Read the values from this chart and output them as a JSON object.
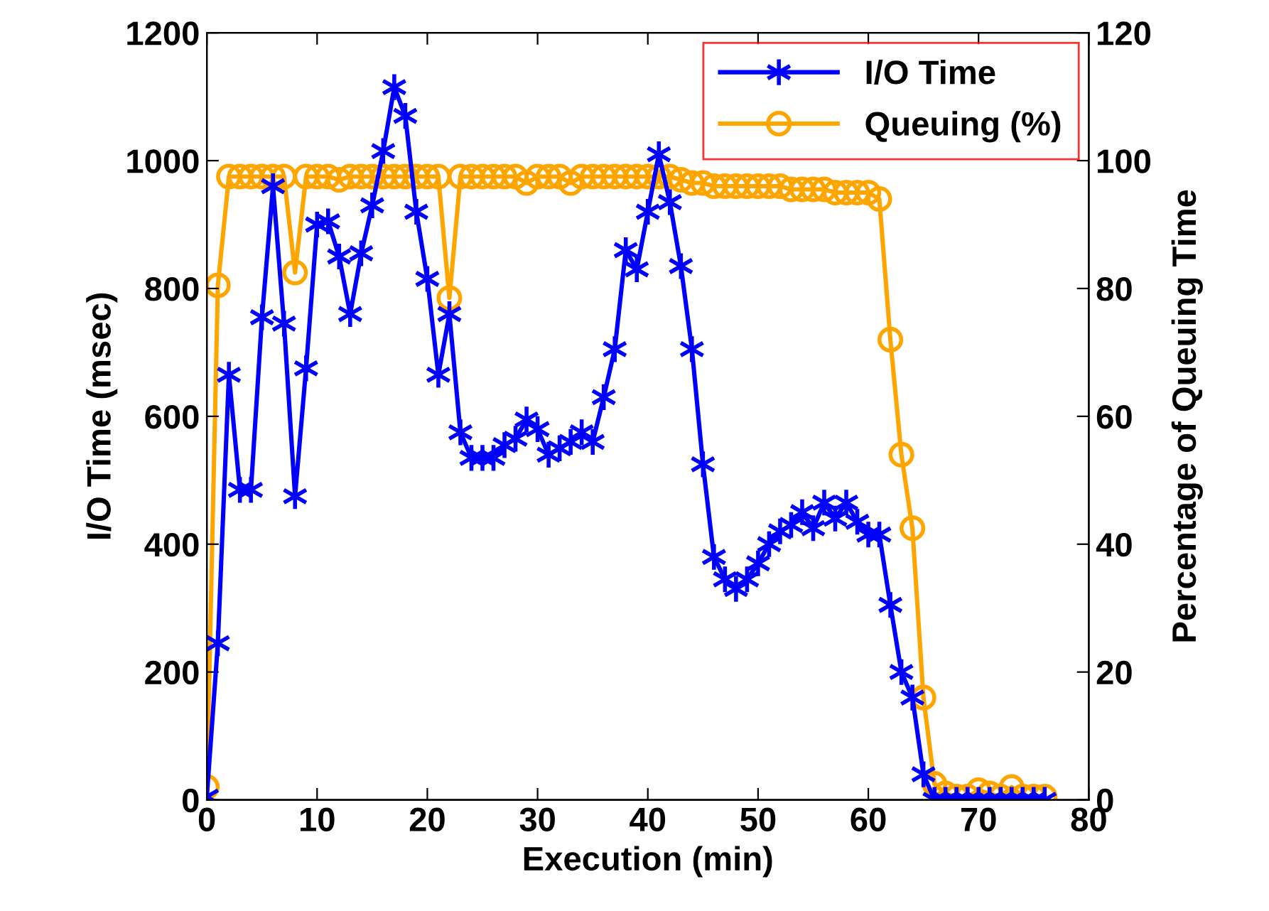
{
  "chart_data": {
    "type": "line",
    "xlabel": "Execution (min)",
    "ylabel": "I/O Time (msec)",
    "y2label": "Percentage of Queuing Time",
    "x": [
      0,
      1,
      2,
      3,
      4,
      5,
      6,
      7,
      8,
      9,
      10,
      11,
      12,
      13,
      14,
      15,
      16,
      17,
      18,
      19,
      20,
      21,
      22,
      23,
      24,
      25,
      26,
      27,
      28,
      29,
      30,
      31,
      32,
      33,
      34,
      35,
      36,
      37,
      38,
      39,
      40,
      41,
      42,
      43,
      44,
      45,
      46,
      47,
      48,
      49,
      50,
      51,
      52,
      53,
      54,
      55,
      56,
      57,
      58,
      59,
      60,
      61,
      62,
      63,
      64,
      65,
      66,
      67,
      68,
      69,
      70,
      71,
      72,
      73,
      74,
      75,
      76
    ],
    "series": [
      {
        "name": "I/O Time",
        "color": "#0000ff",
        "marker": "cross",
        "values": [
          5,
          245,
          665,
          485,
          485,
          755,
          960,
          745,
          475,
          675,
          900,
          905,
          850,
          760,
          855,
          930,
          1015,
          1115,
          1070,
          920,
          815,
          665,
          760,
          575,
          535,
          535,
          535,
          555,
          565,
          595,
          580,
          540,
          550,
          560,
          575,
          560,
          630,
          705,
          860,
          830,
          920,
          1010,
          935,
          835,
          705,
          525,
          380,
          345,
          330,
          345,
          370,
          400,
          420,
          430,
          450,
          425,
          465,
          440,
          465,
          435,
          415,
          415,
          305,
          200,
          160,
          40,
          0,
          0,
          0,
          0,
          0,
          0,
          0,
          0,
          0,
          0,
          0
        ]
      },
      {
        "name": "Queuing (%)",
        "color": "#ffa500",
        "marker": "circle",
        "axis": "y2",
        "values": [
          2,
          80.5,
          97.5,
          97.5,
          97.5,
          97.5,
          97.5,
          97.5,
          82.5,
          97.5,
          97.5,
          97.5,
          97,
          97.5,
          97.5,
          97.5,
          97.5,
          97.5,
          97.5,
          97.5,
          97.5,
          97.5,
          78.5,
          97.5,
          97.5,
          97.5,
          97.5,
          97.5,
          97.5,
          96.5,
          97.5,
          97.5,
          97.5,
          96.5,
          97.5,
          97.5,
          97.5,
          97.5,
          97.5,
          97.5,
          97.5,
          97.5,
          97.5,
          97,
          96.5,
          96.5,
          96,
          96,
          96,
          96,
          96,
          96,
          96,
          95.5,
          95.5,
          95.5,
          95.5,
          95,
          95,
          95,
          95,
          94,
          72,
          54,
          42.5,
          16,
          2.5,
          1,
          0.5,
          0.5,
          1.5,
          1,
          0.5,
          2,
          0.5,
          0.5,
          0.5
        ]
      }
    ],
    "xlim": [
      0,
      80
    ],
    "xticks": [
      0,
      10,
      20,
      30,
      40,
      50,
      60,
      70,
      80
    ],
    "ylim": [
      0,
      1200
    ],
    "yticks": [
      0,
      200,
      400,
      600,
      800,
      1000,
      1200
    ],
    "y2lim": [
      0,
      120
    ],
    "y2ticks": [
      0,
      20,
      40,
      60,
      80,
      100,
      120
    ],
    "legend": "top right",
    "grid": false
  }
}
